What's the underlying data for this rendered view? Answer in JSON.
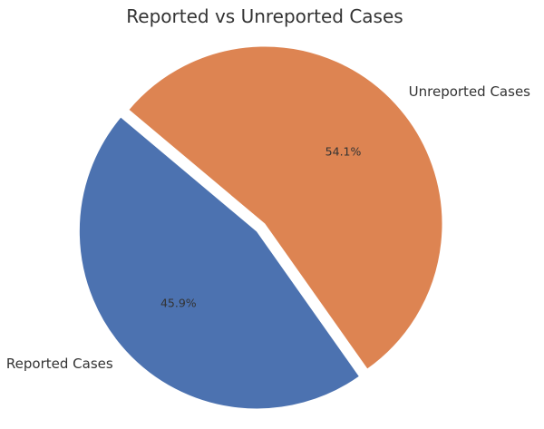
{
  "chart_data": {
    "type": "pie",
    "title": "Reported vs Unreported Cases",
    "slices": [
      {
        "label": "Reported Cases",
        "value": 45.9,
        "pct_label": "45.9%",
        "color": "#4c72b0",
        "exploded": true
      },
      {
        "label": "Unreported Cases",
        "value": 54.1,
        "pct_label": "54.1%",
        "color": "#dd8452",
        "exploded": false
      }
    ],
    "start_angle_deg": 140,
    "direction": "counterclockwise",
    "legend": "none"
  }
}
